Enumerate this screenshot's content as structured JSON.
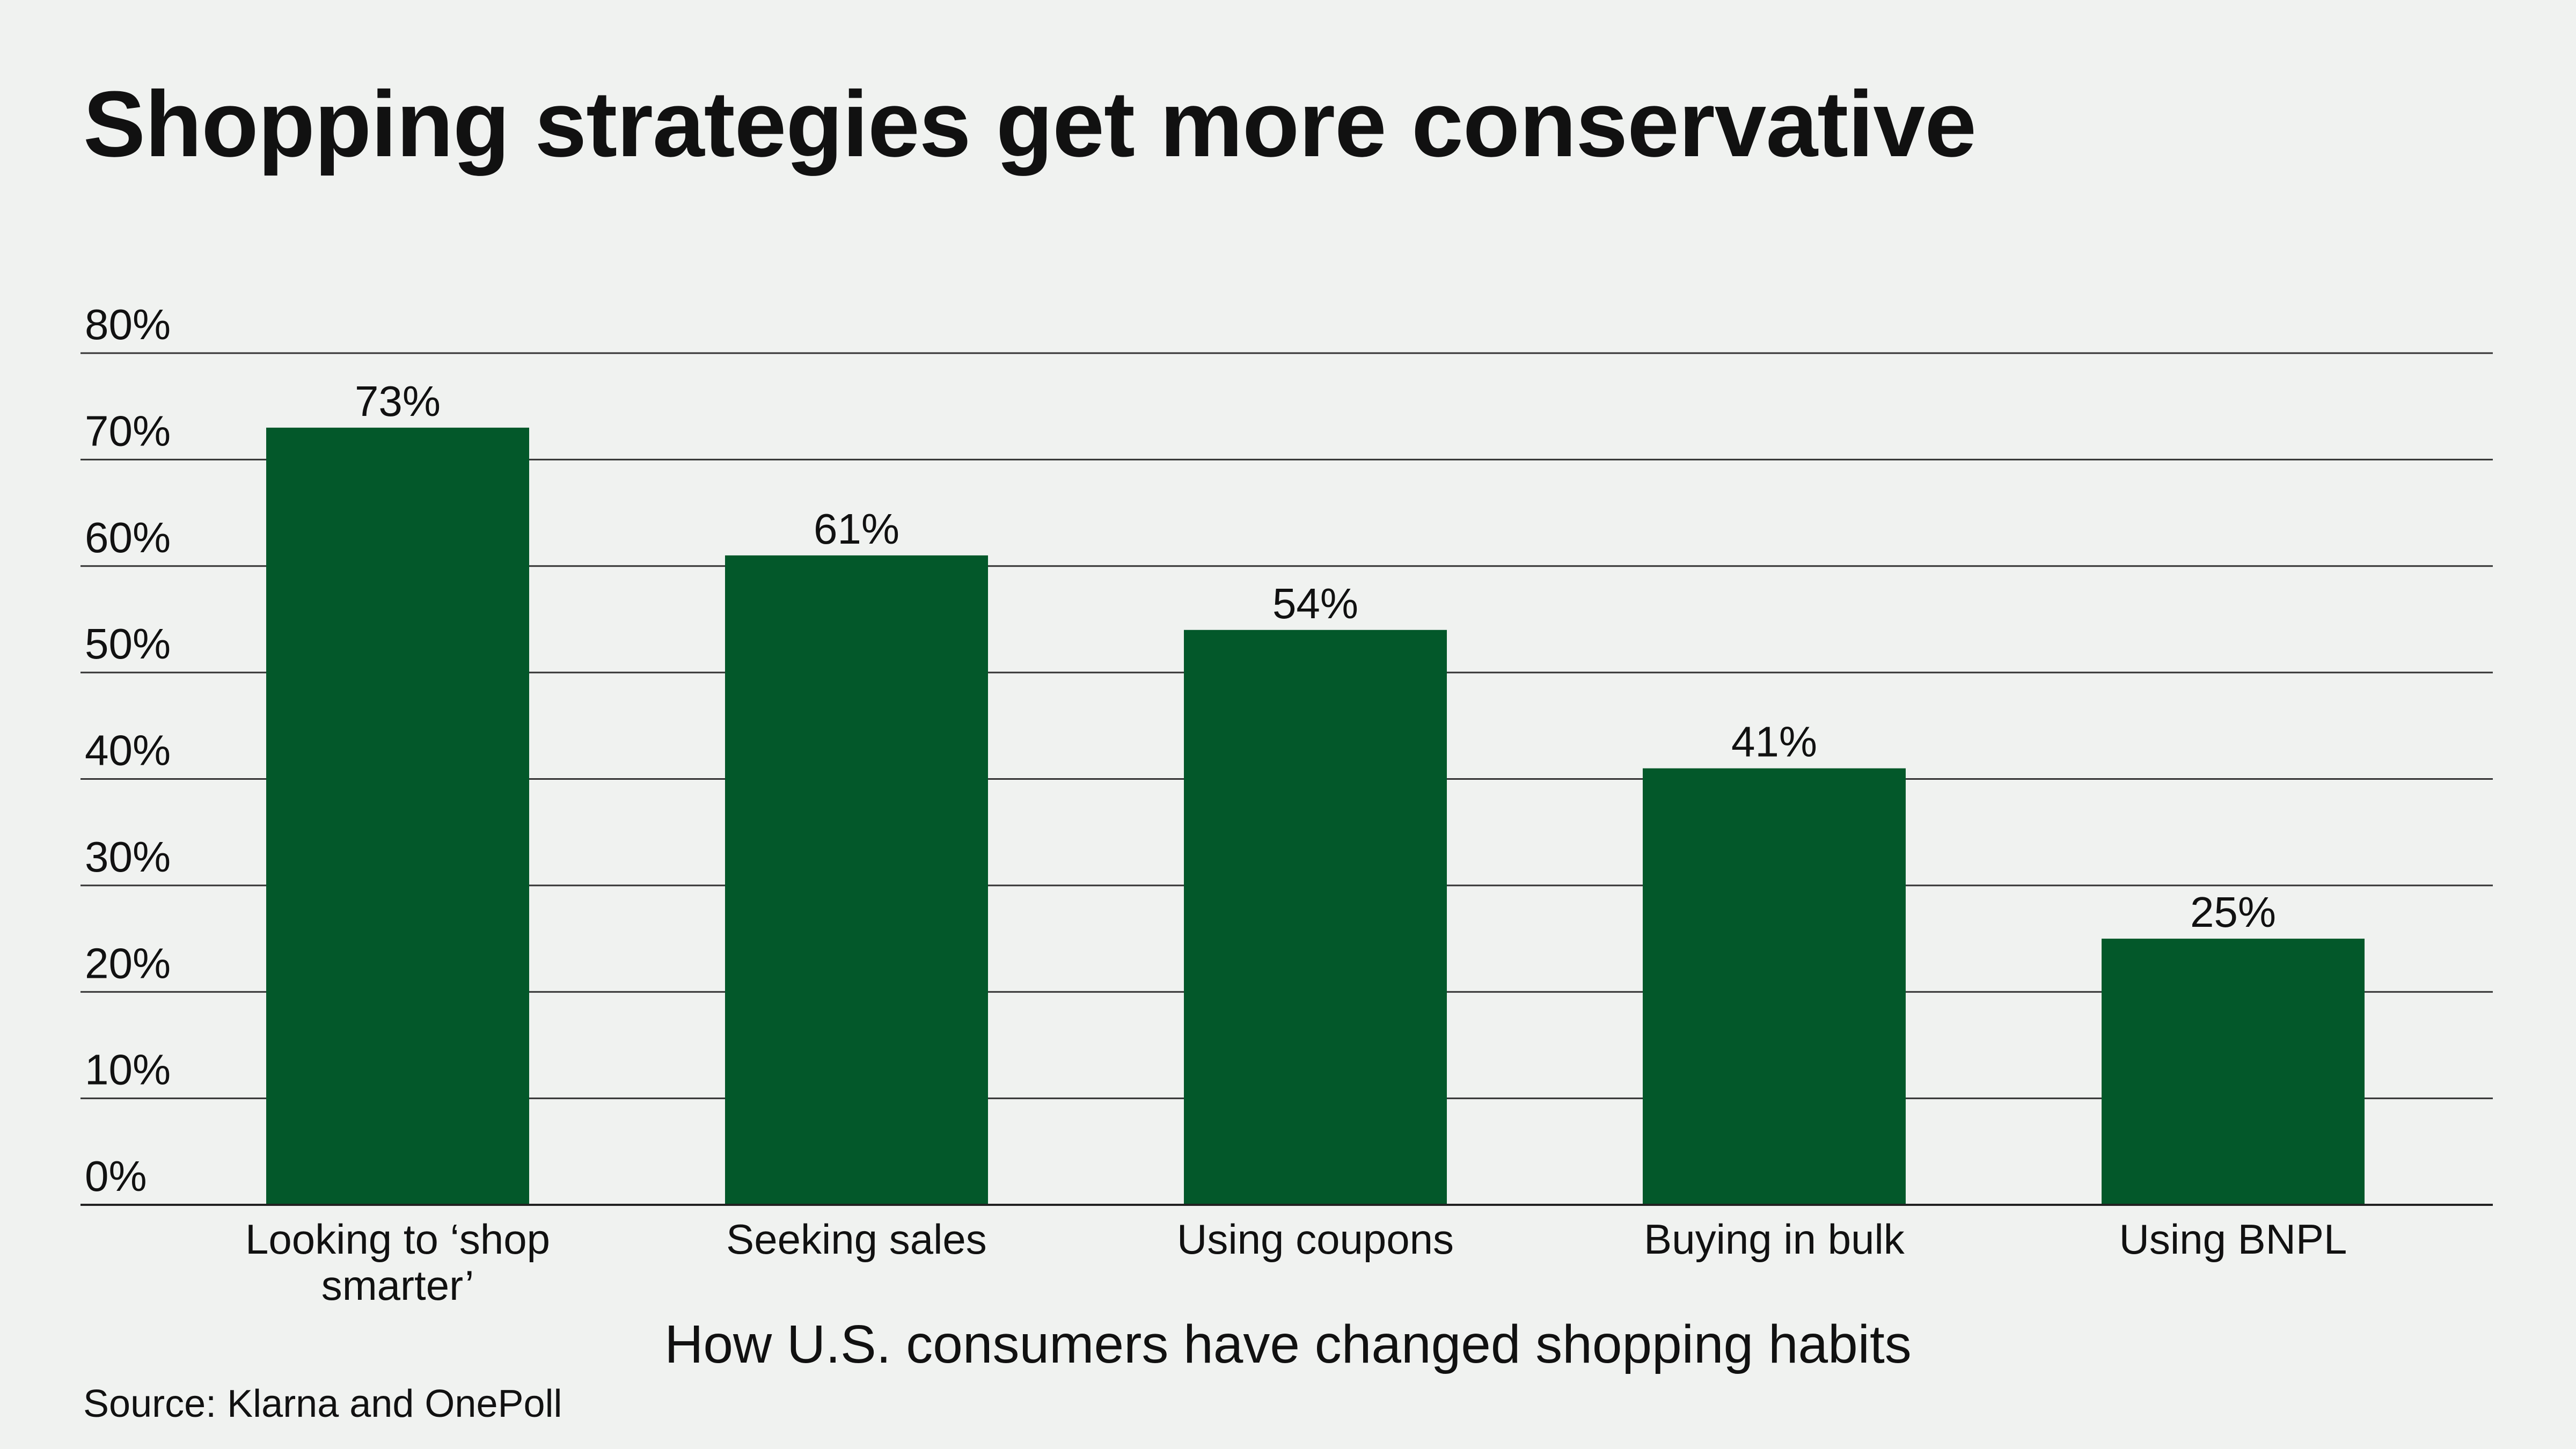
{
  "chart_data": {
    "type": "bar",
    "title": "Shopping strategies get more conservative",
    "xlabel": "How U.S. consumers have changed shopping habits",
    "ylabel": "",
    "source": "Source: Klarna and OnePoll",
    "categories": [
      [
        "Looking to ‘shop",
        "smarter’"
      ],
      [
        "Seeking sales"
      ],
      [
        "Using coupons"
      ],
      [
        "Buying in bulk"
      ],
      [
        "Using BNPL"
      ]
    ],
    "values": [
      73,
      61,
      54,
      41,
      25
    ],
    "data_labels": [
      "73%",
      "61%",
      "54%",
      "41%",
      "25%"
    ],
    "ylim": [
      0,
      80
    ],
    "y_ticks": [
      0,
      10,
      20,
      30,
      40,
      50,
      60,
      70,
      80
    ],
    "y_tick_labels": [
      "0%",
      "10%",
      "20%",
      "30%",
      "40%",
      "50%",
      "60%",
      "70%",
      "80%"
    ],
    "grid": true,
    "legend": "none",
    "colors": {
      "bar": "#03582a",
      "grid": "#333333",
      "background": "#f0f2f0"
    }
  }
}
